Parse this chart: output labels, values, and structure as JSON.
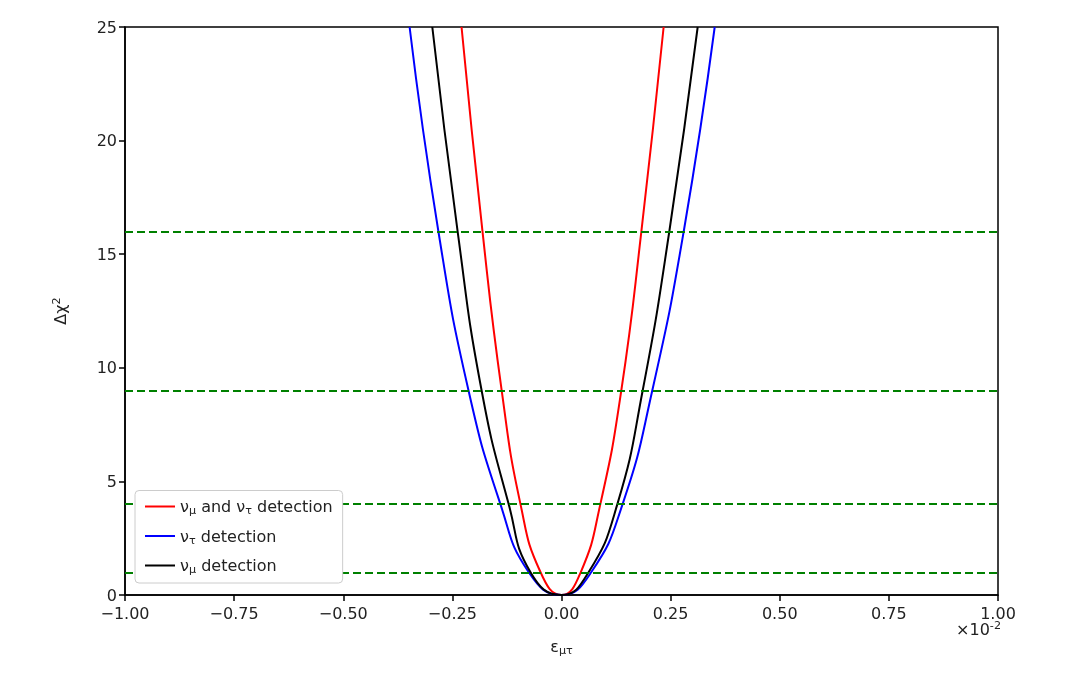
{
  "chart_data": {
    "type": "line",
    "xlabel": "ε$_{μτ}$",
    "ylabel": "Δχ$^{2}$",
    "xlim": [
      -1,
      1
    ],
    "ylim": [
      0,
      25
    ],
    "xticks": [
      {
        "value": -1,
        "label": "−1.00"
      },
      {
        "value": -0.75,
        "label": "−0.75"
      },
      {
        "value": -0.5,
        "label": "−0.50"
      },
      {
        "value": -0.25,
        "label": "−0.25"
      },
      {
        "value": 0,
        "label": "0.00"
      },
      {
        "value": 0.25,
        "label": "0.25"
      },
      {
        "value": 0.5,
        "label": "0.50"
      },
      {
        "value": 0.75,
        "label": "0.75"
      },
      {
        "value": 1,
        "label": "1.00"
      }
    ],
    "yticks": [
      0,
      5,
      10,
      15,
      20,
      25
    ],
    "grid": false,
    "legend": "bottom left",
    "annotations": [
      "×10$^{-2}$"
    ],
    "ref_lines": [
      {
        "axis": "y",
        "value": 1,
        "color": "#008000",
        "line_style": "dashed"
      },
      {
        "axis": "y",
        "value": 4,
        "color": "#008000",
        "line_style": "dashed"
      },
      {
        "axis": "y",
        "value": 9,
        "color": "#008000",
        "line_style": "dashed"
      },
      {
        "axis": "y",
        "value": 16,
        "color": "#008000",
        "line_style": "dashed"
      }
    ],
    "series": [
      {
        "name": "ν$_{μ}$ and ν$_{τ}$ detection",
        "color": "#ff0000",
        "x": [
          -0.229,
          -0.181,
          -0.137,
          -0.094,
          -0.048,
          0,
          0.044,
          0.089,
          0.137,
          0.183,
          0.234
        ],
        "values": [
          25,
          16,
          9,
          4,
          1,
          0,
          1,
          4,
          9,
          16,
          25
        ]
      },
      {
        "name": "ν$_{τ}$ detection",
        "color": "#0000ff",
        "x": [
          -0.348,
          -0.282,
          -0.213,
          -0.14,
          -0.075,
          0,
          0.068,
          0.14,
          0.208,
          0.28,
          0.351
        ],
        "values": [
          25,
          16,
          9,
          4,
          1,
          0,
          1,
          4,
          9,
          16,
          25
        ]
      },
      {
        "name": "ν$_{μ}$ detection",
        "color": "#000000",
        "x": [
          -0.296,
          -0.238,
          -0.183,
          -0.121,
          -0.071,
          0,
          0.062,
          0.128,
          0.186,
          0.247,
          0.312
        ],
        "values": [
          25,
          16,
          9,
          4,
          1,
          0,
          1,
          4,
          9,
          16,
          25
        ]
      }
    ]
  }
}
